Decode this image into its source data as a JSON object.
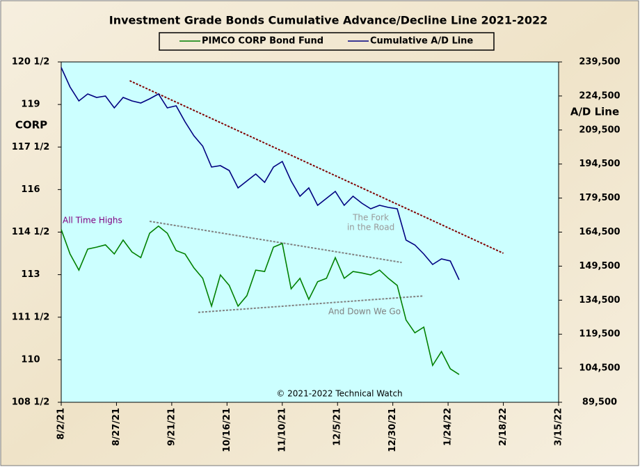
{
  "chart_data": {
    "type": "line",
    "title": "Investment  Grade  Bonds  Cumulative  Advance/Decline  Line  2021-2022",
    "ylabel": "CORP",
    "y2label": "A/D Line",
    "x": [
      "2021-08-02",
      "2021-08-06",
      "2021-08-10",
      "2021-08-14",
      "2021-08-18",
      "2021-08-22",
      "2021-08-26",
      "2021-08-30",
      "2021-09-03",
      "2021-09-07",
      "2021-09-11",
      "2021-09-15",
      "2021-09-19",
      "2021-09-23",
      "2021-09-27",
      "2021-10-01",
      "2021-10-05",
      "2021-10-09",
      "2021-10-13",
      "2021-10-17",
      "2021-10-21",
      "2021-10-25",
      "2021-10-29",
      "2021-11-02",
      "2021-11-06",
      "2021-11-10",
      "2021-11-14",
      "2021-11-18",
      "2021-11-22",
      "2021-11-26",
      "2021-11-30",
      "2021-12-04",
      "2021-12-08",
      "2021-12-12",
      "2021-12-16",
      "2021-12-20",
      "2021-12-24",
      "2021-12-28",
      "2022-01-01",
      "2022-01-05",
      "2022-01-09",
      "2022-01-13",
      "2022-01-17",
      "2022-01-21",
      "2022-01-25",
      "2022-01-29"
    ],
    "series": [
      {
        "name": "PIMCO CORP Bond Fund",
        "color": "#008000",
        "axis": "y",
        "values": [
          114.59,
          113.73,
          113.16,
          113.9,
          113.97,
          114.05,
          113.73,
          114.22,
          113.8,
          113.6,
          114.46,
          114.71,
          114.46,
          113.85,
          113.73,
          113.24,
          112.87,
          111.89,
          112.99,
          112.62,
          111.89,
          112.26,
          113.16,
          113.11,
          113.97,
          114.1,
          112.5,
          112.87,
          112.13,
          112.75,
          112.87,
          113.6,
          112.87,
          113.11,
          113.06,
          112.99,
          113.16,
          112.87,
          112.62,
          111.4,
          110.95,
          111.15,
          109.8,
          110.29,
          109.68,
          109.48
        ]
      },
      {
        "name": "Cumulative A/D Line",
        "color": "#000080",
        "axis": "y2",
        "values": [
          237050,
          228460,
          222320,
          225390,
          223860,
          224470,
          219260,
          223860,
          222320,
          221400,
          223240,
          225390,
          219260,
          220180,
          213120,
          206990,
          202390,
          193190,
          193800,
          191650,
          183990,
          187050,
          190120,
          186440,
          193190,
          195650,
          187050,
          180300,
          183990,
          176320,
          179390,
          182460,
          176320,
          180300,
          177230,
          174780,
          176320,
          175400,
          174780,
          160980,
          158840,
          154850,
          150250,
          152700,
          151780,
          143500
        ]
      }
    ],
    "trend_lines": [
      {
        "color": "#800000",
        "axis": "y2",
        "x": [
          "2021-09-02",
          "2022-02-18"
        ],
        "values": [
          231220,
          155160
        ]
      },
      {
        "color": "#808080",
        "axis": "y",
        "x": [
          "2021-09-11",
          "2022-01-03"
        ],
        "values": [
          114.88,
          113.43
        ]
      },
      {
        "color": "#808080",
        "axis": "y",
        "x": [
          "2021-10-03",
          "2022-01-13"
        ],
        "values": [
          111.67,
          112.25
        ]
      }
    ],
    "annotations": [
      "All Time Highs",
      [
        "The Fork",
        "in the Road"
      ],
      "And Down  We Go",
      "© 2021-2022  Technical Watch"
    ],
    "xlim": [
      "2021-08-02",
      "2022-03-15"
    ],
    "xticks": [
      {
        "value": "2021-08-02",
        "label": "8/2/21"
      },
      {
        "value": "2021-08-27",
        "label": "8/27/21"
      },
      {
        "value": "2021-09-21",
        "label": "9/21/21"
      },
      {
        "value": "2021-10-16",
        "label": "10/16/21"
      },
      {
        "value": "2021-11-10",
        "label": "11/10/21"
      },
      {
        "value": "2021-12-05",
        "label": "12/5/21"
      },
      {
        "value": "2021-12-30",
        "label": "12/30/21"
      },
      {
        "value": "2022-01-24",
        "label": "1/24/22"
      },
      {
        "value": "2022-02-18",
        "label": "2/18/22"
      },
      {
        "value": "2022-03-15",
        "label": "3/15/22"
      }
    ],
    "ylim": [
      108.5,
      120.5
    ],
    "yticks": [
      {
        "value": 108.5,
        "label": "108 1/2"
      },
      110,
      {
        "value": 111.5,
        "label": "111 1/2"
      },
      113,
      {
        "value": 114.5,
        "label": "114 1/2"
      },
      116,
      {
        "value": 117.5,
        "label": "117 1/2"
      },
      119,
      {
        "value": 120.5,
        "label": "120 1/2"
      }
    ],
    "y2lim": [
      89500,
      239500
    ],
    "y2ticks": [
      {
        "value": 89500,
        "label": "89,500"
      },
      {
        "value": 104500,
        "label": "104,500"
      },
      {
        "value": 119500,
        "label": "119,500"
      },
      {
        "value": 134500,
        "label": "134,500"
      },
      {
        "value": 149500,
        "label": "149,500"
      },
      {
        "value": 164500,
        "label": "164,500"
      },
      {
        "value": 179500,
        "label": "179,500"
      },
      {
        "value": 194500,
        "label": "194,500"
      },
      {
        "value": 209500,
        "label": "209,500"
      },
      {
        "value": 224500,
        "label": "224,500"
      },
      {
        "value": 239500,
        "label": "239,500"
      }
    ],
    "grid": false
  }
}
